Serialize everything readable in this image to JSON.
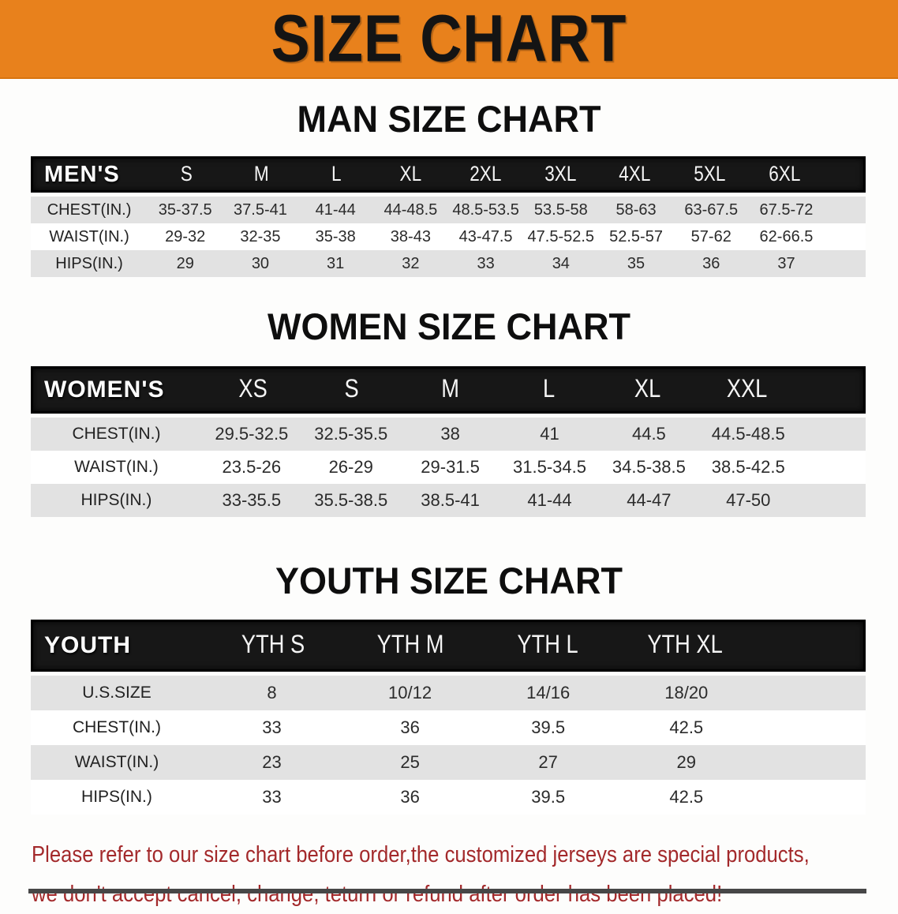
{
  "banner": {
    "title": "SIZE CHART"
  },
  "colors": {
    "banner_bg": "#E8811C",
    "table_header_bg": "#171717",
    "row_stripe": "#E2E2E2",
    "disclaimer_text": "#A3292B"
  },
  "sections": [
    {
      "id": "men",
      "heading": "MAN SIZE CHART",
      "table": {
        "header_label": "MEN'S",
        "sizes": [
          "S",
          "M",
          "L",
          "XL",
          "2XL",
          "3XL",
          "4XL",
          "5XL",
          "6XL"
        ],
        "rows": [
          {
            "label": "CHEST(IN.)",
            "values": [
              "35-37.5",
              "37.5-41",
              "41-44",
              "44-48.5",
              "48.5-53.5",
              "53.5-58",
              "58-63",
              "63-67.5",
              "67.5-72"
            ]
          },
          {
            "label": "WAIST(IN.)",
            "values": [
              "29-32",
              "32-35",
              "35-38",
              "38-43",
              "43-47.5",
              "47.5-52.5",
              "52.5-57",
              "57-62",
              "62-66.5"
            ]
          },
          {
            "label": "HIPS(IN.)",
            "values": [
              "29",
              "30",
              "31",
              "32",
              "33",
              "34",
              "35",
              "36",
              "37"
            ]
          }
        ]
      }
    },
    {
      "id": "women",
      "heading": "WOMEN SIZE CHART",
      "table": {
        "header_label": "WOMEN'S",
        "sizes": [
          "XS",
          "S",
          "M",
          "L",
          "XL",
          "XXL"
        ],
        "rows": [
          {
            "label": "CHEST(IN.)",
            "values": [
              "29.5-32.5",
              "32.5-35.5",
              "38",
              "41",
              "44.5",
              "44.5-48.5"
            ]
          },
          {
            "label": "WAIST(IN.)",
            "values": [
              "23.5-26",
              "26-29",
              "29-31.5",
              "31.5-34.5",
              "34.5-38.5",
              "38.5-42.5"
            ]
          },
          {
            "label": "HIPS(IN.)",
            "values": [
              "33-35.5",
              "35.5-38.5",
              "38.5-41",
              "41-44",
              "44-47",
              "47-50"
            ]
          }
        ]
      }
    },
    {
      "id": "youth",
      "heading": "YOUTH SIZE CHART",
      "table": {
        "header_label": "YOUTH",
        "sizes": [
          "YTH S",
          "YTH M",
          "YTH L",
          "YTH XL"
        ],
        "rows": [
          {
            "label": "U.S.SIZE",
            "values": [
              "8",
              "10/12",
              "14/16",
              "18/20"
            ]
          },
          {
            "label": "CHEST(IN.)",
            "values": [
              "33",
              "36",
              "39.5",
              "42.5"
            ]
          },
          {
            "label": "WAIST(IN.)",
            "values": [
              "23",
              "25",
              "27",
              "29"
            ]
          },
          {
            "label": "HIPS(IN.)",
            "values": [
              "33",
              "36",
              "39.5",
              "42.5"
            ]
          }
        ]
      }
    }
  ],
  "disclaimer": {
    "line1": "Please refer to our size chart before order,the customized jerseys are special products,",
    "line2": "we don't accept cancel, change, teturn or refund after order has been placed!"
  }
}
